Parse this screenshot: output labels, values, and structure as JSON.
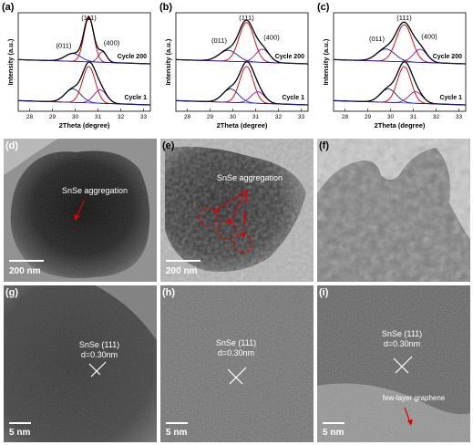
{
  "panel_labels": [
    "(a)",
    "(b)",
    "(c)",
    "(d)",
    "(e)",
    "(f)",
    "(g)",
    "(h)",
    "(i)"
  ],
  "chart_common": {
    "xlabel": "2Theta (degree)",
    "ylabel": "Intensity (a.u.)",
    "xticks": [
      "28",
      "29",
      "30",
      "31",
      "32",
      "33"
    ],
    "peaks": [
      "(011)",
      "(111)",
      "(400)"
    ],
    "cycles": [
      "Cycle 200",
      "Cycle 1"
    ]
  },
  "chart_data": [
    {
      "type": "line",
      "panel": "(a)",
      "xlabel": "2Theta (degree)",
      "ylabel": "Intensity (a.u.)",
      "xlim": [
        27.5,
        33.3
      ],
      "x_ticks": [
        28,
        29,
        30,
        31,
        32,
        33
      ],
      "peak_labels": [
        "(011)",
        "(111)",
        "(400)"
      ],
      "series": [
        {
          "name": "Cycle 200",
          "peaks": [
            {
              "center": 29.9,
              "height": 0.18,
              "width": 0.35
            },
            {
              "center": 30.6,
              "height": 1.0,
              "width": 0.22
            },
            {
              "center": 31.2,
              "height": 0.24,
              "width": 0.18
            }
          ]
        },
        {
          "name": "Cycle 1",
          "peaks": [
            {
              "center": 29.9,
              "height": 0.35,
              "width": 0.35
            },
            {
              "center": 30.6,
              "height": 0.95,
              "width": 0.28
            },
            {
              "center": 31.1,
              "height": 0.35,
              "width": 0.28
            }
          ]
        }
      ]
    },
    {
      "type": "line",
      "panel": "(b)",
      "xlabel": "2Theta (degree)",
      "ylabel": "Intensity (a.u.)",
      "xlim": [
        27.5,
        33.3
      ],
      "x_ticks": [
        28,
        29,
        30,
        31,
        32,
        33
      ],
      "peak_labels": [
        "(011)",
        "(111)",
        "(400)"
      ],
      "series": [
        {
          "name": "Cycle 200",
          "peaks": [
            {
              "center": 29.8,
              "height": 0.25,
              "width": 0.4
            },
            {
              "center": 30.6,
              "height": 0.9,
              "width": 0.33
            },
            {
              "center": 31.3,
              "height": 0.3,
              "width": 0.3
            }
          ]
        },
        {
          "name": "Cycle 1",
          "peaks": [
            {
              "center": 29.9,
              "height": 0.35,
              "width": 0.35
            },
            {
              "center": 30.6,
              "height": 0.95,
              "width": 0.3
            },
            {
              "center": 31.1,
              "height": 0.3,
              "width": 0.3
            }
          ]
        }
      ]
    },
    {
      "type": "line",
      "panel": "(c)",
      "xlabel": "2Theta (degree)",
      "ylabel": "Intensity (a.u.)",
      "xlim": [
        27.5,
        33.3
      ],
      "x_ticks": [
        28,
        29,
        30,
        31,
        32,
        33
      ],
      "peak_labels": [
        "(011)",
        "(111)",
        "(400)"
      ],
      "series": [
        {
          "name": "Cycle 200",
          "peaks": [
            {
              "center": 29.8,
              "height": 0.28,
              "width": 0.4
            },
            {
              "center": 30.6,
              "height": 0.85,
              "width": 0.35
            },
            {
              "center": 31.3,
              "height": 0.3,
              "width": 0.3
            }
          ]
        },
        {
          "name": "Cycle 1",
          "peaks": [
            {
              "center": 29.9,
              "height": 0.35,
              "width": 0.35
            },
            {
              "center": 30.6,
              "height": 0.95,
              "width": 0.3
            },
            {
              "center": 31.1,
              "height": 0.3,
              "width": 0.3
            }
          ]
        }
      ]
    }
  ],
  "tem": {
    "d_label": "SnSe aggregation",
    "e_label": "SnSe aggregation",
    "scale_200": "200 nm",
    "scale_5": "5 nm",
    "lattice_line1": "SnSe (111)",
    "lattice_line2": "d=0.30nm",
    "graphene_label": "few-layer graphene"
  },
  "colors": {
    "fit_black": "#000000",
    "fit_red": "#cc0000",
    "fit_blue": "#1a1aa8",
    "fit_purple": "#8b1a8b",
    "arrow_red": "#e00000"
  }
}
